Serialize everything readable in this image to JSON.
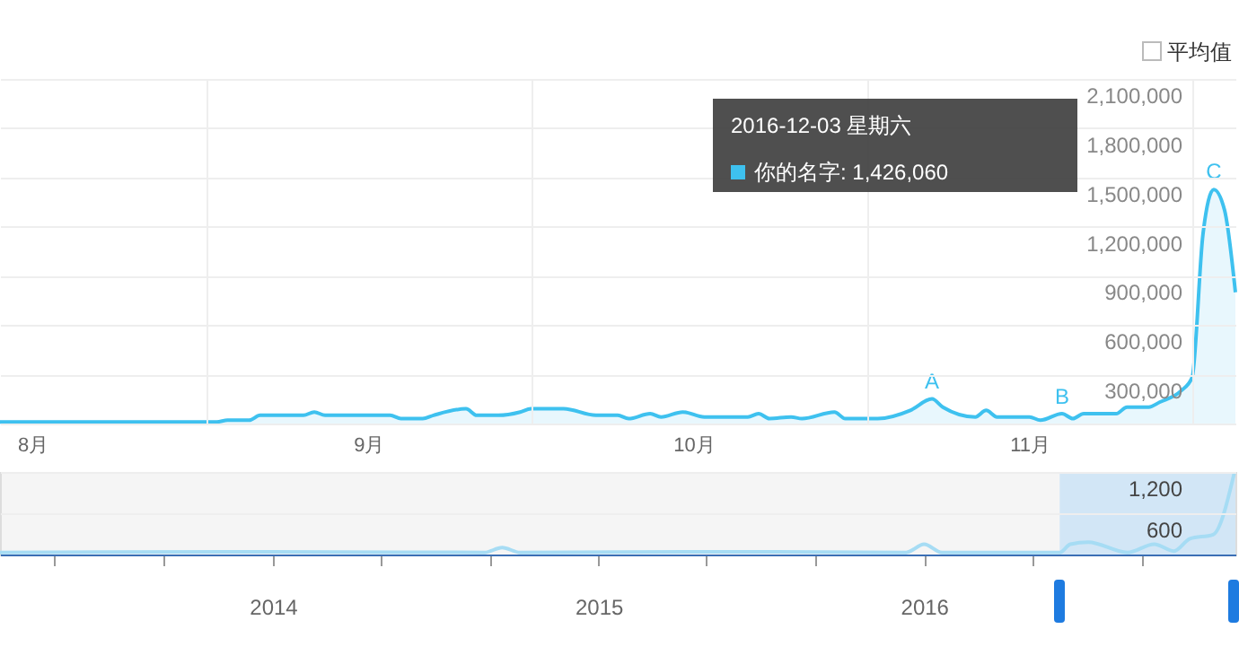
{
  "chart_data": [
    {
      "type": "area",
      "x": [
        "2016-07-29",
        "2016-08-18",
        "2016-08-19",
        "2016-08-21",
        "2016-08-22",
        "2016-08-26",
        "2016-08-27",
        "2016-08-28",
        "2016-09-03",
        "2016-09-04",
        "2016-09-06",
        "2016-09-07",
        "2016-09-10",
        "2016-09-11",
        "2016-09-13",
        "2016-09-15",
        "2016-09-16",
        "2016-09-19",
        "2016-09-22",
        "2016-09-24",
        "2016-09-25",
        "2016-09-27",
        "2016-09-28",
        "2016-09-30",
        "2016-10-02",
        "2016-10-06",
        "2016-10-07",
        "2016-10-08",
        "2016-10-10",
        "2016-10-11",
        "2016-10-14",
        "2016-10-15",
        "2016-10-18",
        "2016-10-21",
        "2016-10-23",
        "2016-10-24",
        "2016-10-27",
        "2016-10-28",
        "2016-10-29",
        "2016-11-01",
        "2016-11-02",
        "2016-11-04",
        "2016-11-05",
        "2016-11-06",
        "2016-11-09",
        "2016-11-10",
        "2016-11-12",
        "2016-11-13",
        "2016-11-15",
        "2016-11-16",
        "2016-11-17",
        "2016-11-18",
        "2016-11-19",
        "2016-11-20"
      ],
      "series": [
        {
          "name": "你的名字",
          "color": "#3ec1ef",
          "values": [
            10000,
            10000,
            20000,
            20000,
            50000,
            50000,
            70000,
            50000,
            50000,
            30000,
            30000,
            50000,
            90000,
            50000,
            50000,
            70000,
            90000,
            90000,
            50000,
            50000,
            30000,
            60000,
            40000,
            70000,
            40000,
            40000,
            60000,
            30000,
            40000,
            30000,
            70000,
            30000,
            30000,
            80000,
            150000,
            100000,
            40000,
            80000,
            40000,
            40000,
            20000,
            60000,
            30000,
            60000,
            60000,
            100000,
            100000,
            130000,
            200000,
            280000,
            1150000,
            1426060,
            1300000,
            800000
          ]
        }
      ],
      "xlim": [
        "2016-07-29",
        "2016-11-20"
      ],
      "xticks": [
        {
          "value": "2016-08-01",
          "label": "8月"
        },
        {
          "value": "2016-08-17",
          "label": null
        },
        {
          "value": "2016-09-01",
          "label": "9月"
        },
        {
          "value": "2016-09-16",
          "label": null
        },
        {
          "value": "2016-10-01",
          "label": "10月"
        },
        {
          "value": "2016-10-17",
          "label": null
        },
        {
          "value": "2016-11-01",
          "label": "11月"
        },
        {
          "value": "2016-11-16",
          "label": null
        }
      ],
      "ylim": [
        0,
        2100000
      ],
      "yticks": [
        {
          "value": 0,
          "label": null
        },
        {
          "value": 300000,
          "label": "300,000"
        },
        {
          "value": 600000,
          "label": "600,000"
        },
        {
          "value": 900000,
          "label": "900,000"
        },
        {
          "value": 1200000,
          "label": "1,200,000"
        },
        {
          "value": 1500000,
          "label": "1,500,000"
        },
        {
          "value": 1800000,
          "label": "1,800,000"
        },
        {
          "value": 2100000,
          "label": "2,100,000"
        }
      ],
      "grid": true,
      "annotations": [
        {
          "text": "A",
          "x": "2016-10-23",
          "y": 150000
        },
        {
          "text": "B",
          "x": "2016-11-04",
          "y": 55000
        },
        {
          "text": "C",
          "x": "2016-11-18",
          "y": 1426060
        },
        "2016-12-03 星期六",
        ": 1,426,060",
        "平均值"
      ]
    },
    {
      "type": "line",
      "x": [
        "2013-03-01",
        "2013-12-28",
        "2014-08-26",
        "2014-09-15",
        "2014-10-05",
        "2015-05-15",
        "2015-12-12",
        "2016-01-01",
        "2016-01-21",
        "2016-06-01",
        "2016-06-13",
        "2016-07-03",
        "2016-08-16",
        "2016-09-15",
        "2016-10-07",
        "2016-10-25",
        "2016-11-20",
        "2016-12-14"
      ],
      "series": [
        {
          "color": "#a6dcf4",
          "values": [
            30,
            40,
            30,
            100,
            30,
            40,
            30,
            150,
            30,
            30,
            150,
            180,
            30,
            150,
            50,
            230,
            290,
            1200
          ]
        }
      ],
      "xlim": [
        "2013-03-01",
        "2016-12-15"
      ],
      "xticks": [
        {
          "value": "2013-05-01",
          "label": null
        },
        {
          "value": "2013-09-01",
          "label": null
        },
        "2014",
        {
          "value": "2014-05-01",
          "label": null
        },
        {
          "value": "2014-09-01",
          "label": null
        },
        "2015",
        {
          "value": "2015-05-01",
          "label": null
        },
        {
          "value": "2015-09-01",
          "label": null
        },
        "2016",
        {
          "value": "2016-05-01",
          "label": null
        },
        {
          "value": "2016-09-01",
          "label": null
        }
      ],
      "ylim": [
        0,
        1200
      ],
      "yticks": [
        {
          "value": 0,
          "label": null
        },
        {
          "value": 600,
          "label": "600"
        },
        {
          "value": 1200,
          "label": "1,200"
        }
      ],
      "grid": "y",
      "bands": [
        {
          "axis": "x",
          "from": "2016-06-01",
          "to": "2016-12-15",
          "color": "#c9e2f6"
        }
      ]
    }
  ]
}
